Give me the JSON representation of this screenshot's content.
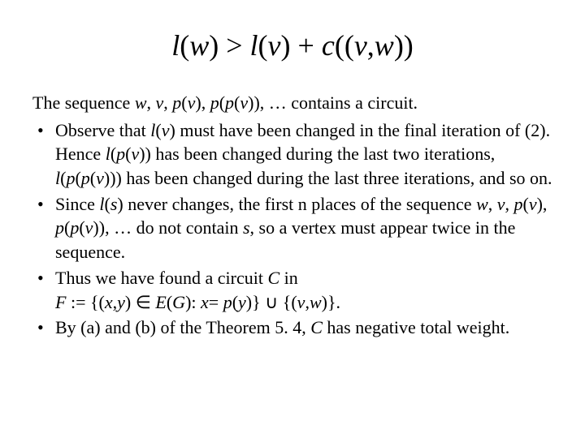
{
  "title": {
    "l": "l",
    "w": "w",
    "v": "v",
    "c": "c",
    "gt": ">",
    "plus": "+",
    "comma": ","
  },
  "intro": {
    "text_before": "The sequence ",
    "seq_w": "w",
    "seq_v": "v",
    "seq_pv": "p",
    "seq_pv_arg": "v",
    "seq_ppv": "p",
    "seq_ppv_inner": "p",
    "seq_ppv_arg": "v",
    "text_after": ", … contains a circuit."
  },
  "bullets": {
    "b1": {
      "p1": "Observe that ",
      "lv_l": "l",
      "lv_v": "v",
      "p2": " must have been changed in the final iteration of (2). Hence ",
      "lpv_l": "l",
      "lpv_p": "p",
      "lpv_v": "v",
      "p3": " has been changed during the last two iterations, ",
      "lppv_l": "l",
      "lppv_p1": "p",
      "lppv_p2": "p",
      "lppv_v": "v",
      "p4": " has been changed during the last three iterations, and so on."
    },
    "b2": {
      "p1": "Since ",
      "ls_l": "l",
      "ls_s": "s",
      "p2": " never changes, the first n places of the sequence ",
      "seq_w": "w",
      "seq_v": "v",
      "seq_pv_p": "p",
      "seq_pv_v": "v",
      "seq_ppv_p1": "p",
      "seq_ppv_p2": "p",
      "seq_ppv_v": "v",
      "p3": ", … do not contain ",
      "s2": "s",
      "p4": ", so a vertex must appear twice in the sequence."
    },
    "b3": {
      "p1": "Thus we have found a circuit ",
      "C": "C",
      "p2": " in",
      "F": "F",
      "coloneq": " := {(",
      "x1": "x",
      "comma1": ",",
      "y1": "y",
      "p3": ") ∈ ",
      "E": "E",
      "G": "G",
      "p4": "): ",
      "x2": "x",
      "eq": "= ",
      "py_p": "p",
      "py_y": "y",
      "p5": ")} ∪ {(",
      "v": "v",
      "comma2": ",",
      "w": "w",
      "p6": ")}."
    },
    "b4": {
      "p1": "By (a) and (b) of the Theorem 5. 4, ",
      "C": "C",
      "p2": " has negative total weight."
    }
  }
}
